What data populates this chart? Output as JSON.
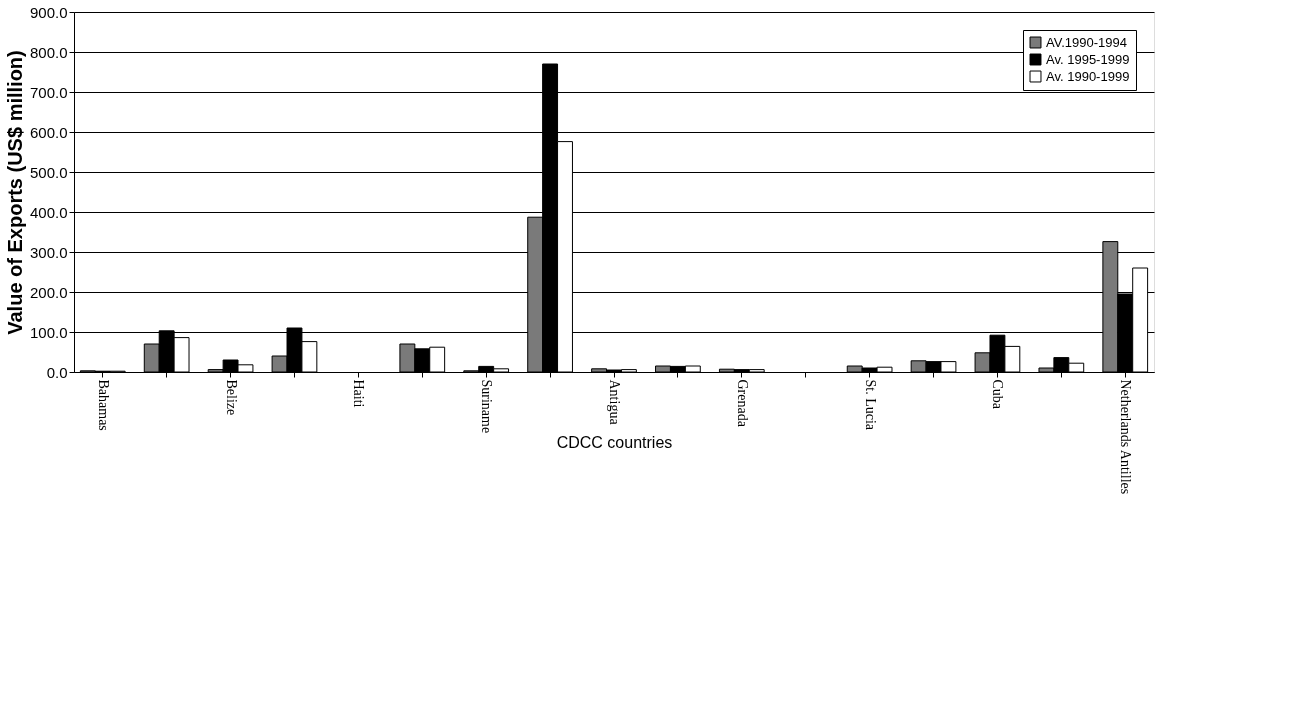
{
  "chart_data": {
    "type": "bar",
    "xlabel": "CDCC countries",
    "ylabel": "Value of Exports (US$ million)",
    "categories": [
      "Bahamas",
      null,
      "Belize",
      null,
      "Haiti",
      null,
      "Suriname",
      null,
      "Antigua",
      null,
      "Grenada",
      null,
      "St. Lucia",
      null,
      "Cuba",
      null,
      "Netherlands Antilles"
    ],
    "series": [
      {
        "name": "AV.1990-1994",
        "color": "#7a7a7a",
        "values": [
          3,
          70,
          6,
          40,
          null,
          70,
          3,
          387,
          8,
          15,
          7,
          null,
          15,
          28,
          48,
          10,
          326
        ]
      },
      {
        "name": "Av. 1995-1999",
        "color": "#000000",
        "values": [
          2,
          103,
          30,
          110,
          null,
          58,
          14,
          770,
          5,
          14,
          6,
          null,
          10,
          26,
          92,
          36,
          195
        ]
      },
      {
        "name": "Av. 1990-1999",
        "color": "#ffffff",
        "values": [
          2,
          86,
          18,
          76,
          null,
          62,
          8,
          576,
          6,
          15,
          6,
          null,
          12,
          26,
          64,
          22,
          260
        ]
      }
    ],
    "ylim": [
      0,
      900
    ],
    "yticks": [
      {
        "value": 0,
        "label": "0.0"
      },
      {
        "value": 100,
        "label": "100.0"
      },
      {
        "value": 200,
        "label": "200.0"
      },
      {
        "value": 300,
        "label": "300.0"
      },
      {
        "value": 400,
        "label": "400.0"
      },
      {
        "value": 500,
        "label": "500.0"
      },
      {
        "value": 600,
        "label": "600.0"
      },
      {
        "value": 700,
        "label": "700.0"
      },
      {
        "value": 800,
        "label": "800.0"
      },
      {
        "value": 900,
        "label": "900.0"
      }
    ],
    "grid": "y",
    "legend": "top right"
  }
}
